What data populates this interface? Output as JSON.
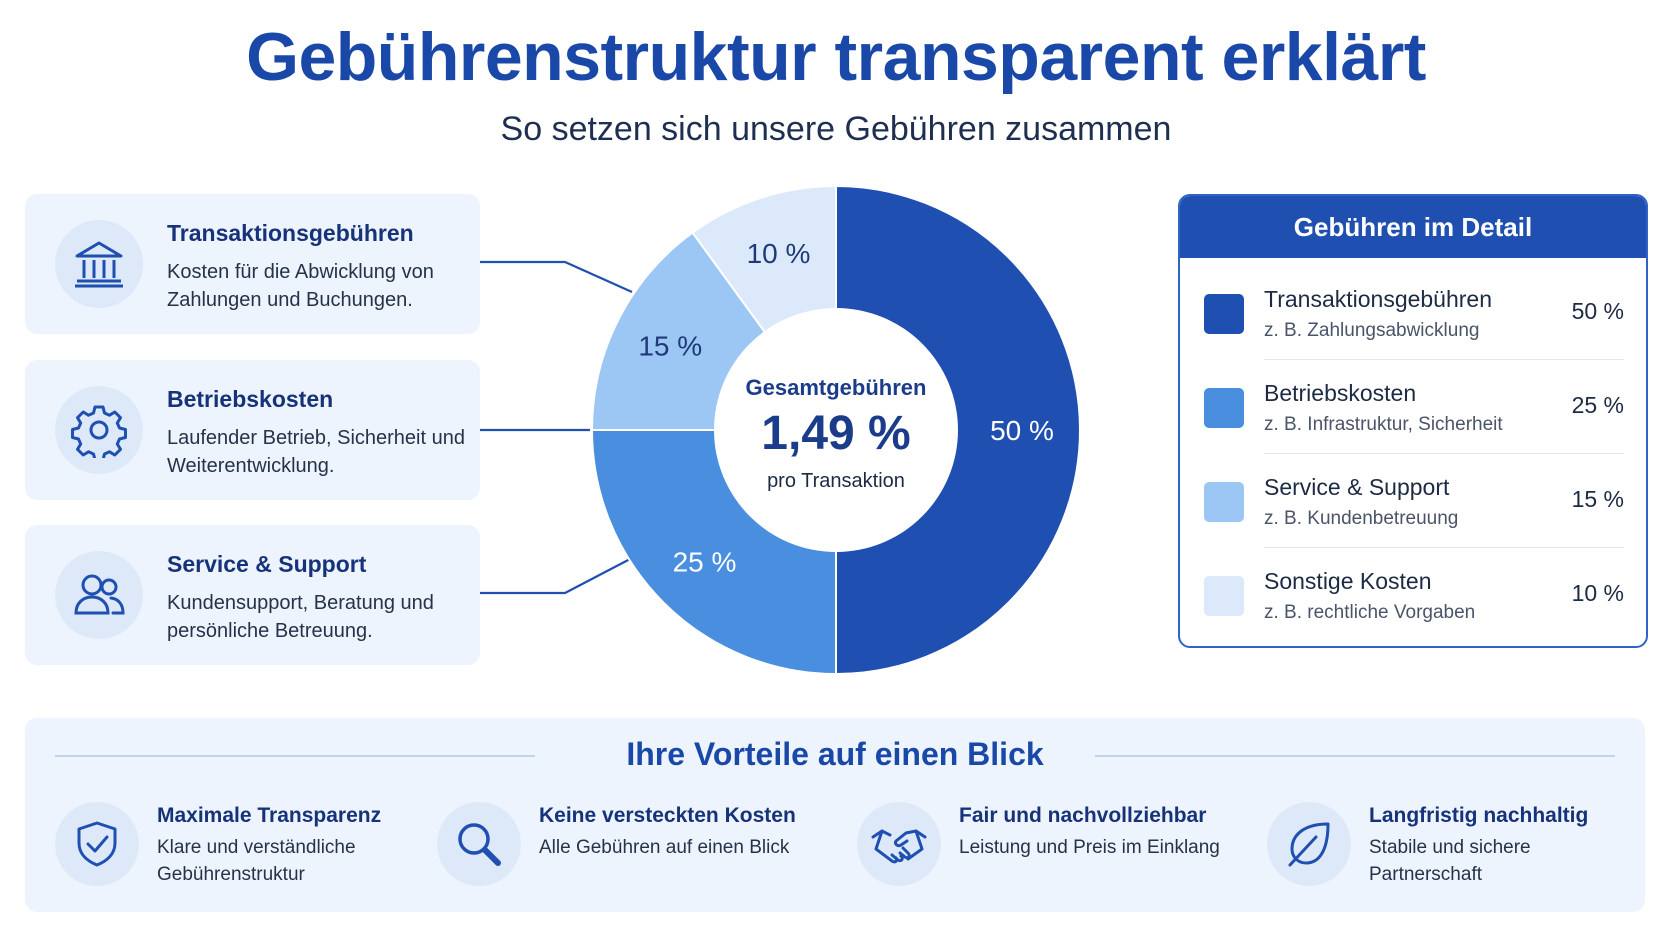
{
  "header": {
    "title": "Gebührenstruktur transparent erklärt",
    "subtitle": "So setzen sich unsere Gebühren zusammen"
  },
  "cards": [
    {
      "title": "Transaktionsgebühren",
      "desc": "Kosten für die Abwicklung von Zahlungen und Buchungen.",
      "icon": "bank-icon"
    },
    {
      "title": "Betriebskosten",
      "desc": "Laufender Betrieb, Sicherheit und Weiterentwicklung.",
      "icon": "gear-icon"
    },
    {
      "title": "Service & Support",
      "desc": "Kundensupport, Beratung und persönliche Betreuung.",
      "icon": "users-icon"
    }
  ],
  "center": {
    "title": "Gesamtgebühren",
    "value": "1,49 %",
    "sub": "pro Transaktion"
  },
  "chart_data": {
    "type": "pie",
    "title": "Gesamtgebühren 1,49 % pro Transaktion",
    "categories": [
      "Transaktionsgebühren",
      "Betriebskosten",
      "Service & Support",
      "Sonstige Kosten"
    ],
    "values": [
      50,
      25,
      15,
      10
    ],
    "labels": [
      "50 %",
      "25 %",
      "15 %",
      "10 %"
    ],
    "colors": [
      "#1f4fb0",
      "#4a8ee0",
      "#9cc7f5",
      "#dbe9fb"
    ],
    "label_colors": [
      "#ffffff",
      "#ffffff",
      "#1f3a78",
      "#1f3a78"
    ],
    "legend_position": "right"
  },
  "detail": {
    "title": "Gebühren im Detail",
    "rows": [
      {
        "name": "Transaktionsgebühren",
        "example": "z. B. Zahlungsabwicklung",
        "value": "50 %",
        "color": "#1f4fb0"
      },
      {
        "name": "Betriebskosten",
        "example": "z. B. Infrastruktur, Sicherheit",
        "value": "25 %",
        "color": "#4a8ee0"
      },
      {
        "name": "Service & Support",
        "example": "z. B. Kundenbetreuung",
        "value": "15 %",
        "color": "#9cc7f5"
      },
      {
        "name": "Sonstige Kosten",
        "example": "z. B. rechtliche Vorgaben",
        "value": "10 %",
        "color": "#dbe9fb"
      }
    ]
  },
  "benefits": {
    "title": "Ihre Vorteile auf einen Blick",
    "items": [
      {
        "title": "Maximale Transparenz",
        "desc": "Klare und verständliche Gebührenstruktur",
        "icon": "shield-check-icon"
      },
      {
        "title": "Keine versteckten Kosten",
        "desc": "Alle Gebühren auf einen Blick",
        "icon": "magnifier-icon"
      },
      {
        "title": "Fair und nachvollziehbar",
        "desc": "Leistung und Preis im Einklang",
        "icon": "handshake-icon"
      },
      {
        "title": "Langfristig nachhaltig",
        "desc": "Stabile und sichere Partnerschaft",
        "icon": "leaf-icon"
      }
    ]
  },
  "accent": "#1a48a8"
}
